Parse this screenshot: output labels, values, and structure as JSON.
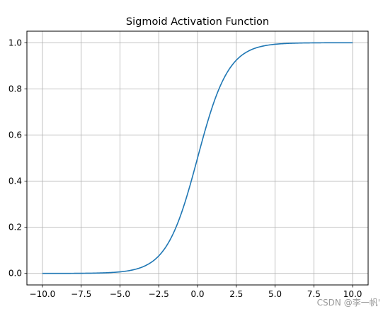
{
  "chart_data": {
    "type": "line",
    "title": "Sigmoid Activation Function",
    "xlabel": "",
    "ylabel": "",
    "xlim": [
      -11.0,
      11.0
    ],
    "ylim": [
      -0.05,
      1.05
    ],
    "grid": true,
    "x_ticks": [
      -10.0,
      -7.5,
      -5.0,
      -2.5,
      0.0,
      2.5,
      5.0,
      7.5,
      10.0
    ],
    "x_tick_labels": [
      "−10.0",
      "−7.5",
      "−5.0",
      "−2.5",
      "0.0",
      "2.5",
      "5.0",
      "7.5",
      "10.0"
    ],
    "y_ticks": [
      0.0,
      0.2,
      0.4,
      0.6,
      0.8,
      1.0
    ],
    "y_tick_labels": [
      "0.0",
      "0.2",
      "0.4",
      "0.6",
      "0.8",
      "1.0"
    ],
    "series": [
      {
        "color": "#1f77b4",
        "x": [
          -10,
          -9,
          -8,
          -7,
          -6,
          -5,
          -4.5,
          -4,
          -3.5,
          -3,
          -2.5,
          -2,
          -1.5,
          -1,
          -0.5,
          0,
          0.5,
          1,
          1.5,
          2,
          2.5,
          3,
          3.5,
          4,
          4.5,
          5,
          6,
          7,
          8,
          9,
          10
        ],
        "y": [
          0.0,
          0.0001,
          0.0003,
          0.0009,
          0.0025,
          0.0067,
          0.011,
          0.018,
          0.0293,
          0.0474,
          0.0759,
          0.1192,
          0.1824,
          0.2689,
          0.3775,
          0.5,
          0.6225,
          0.7311,
          0.8176,
          0.8808,
          0.9241,
          0.9526,
          0.9707,
          0.982,
          0.989,
          0.9933,
          0.9975,
          0.9991,
          0.9997,
          0.9999,
          1.0
        ]
      }
    ]
  },
  "watermark": "CSDN @李一帆'"
}
